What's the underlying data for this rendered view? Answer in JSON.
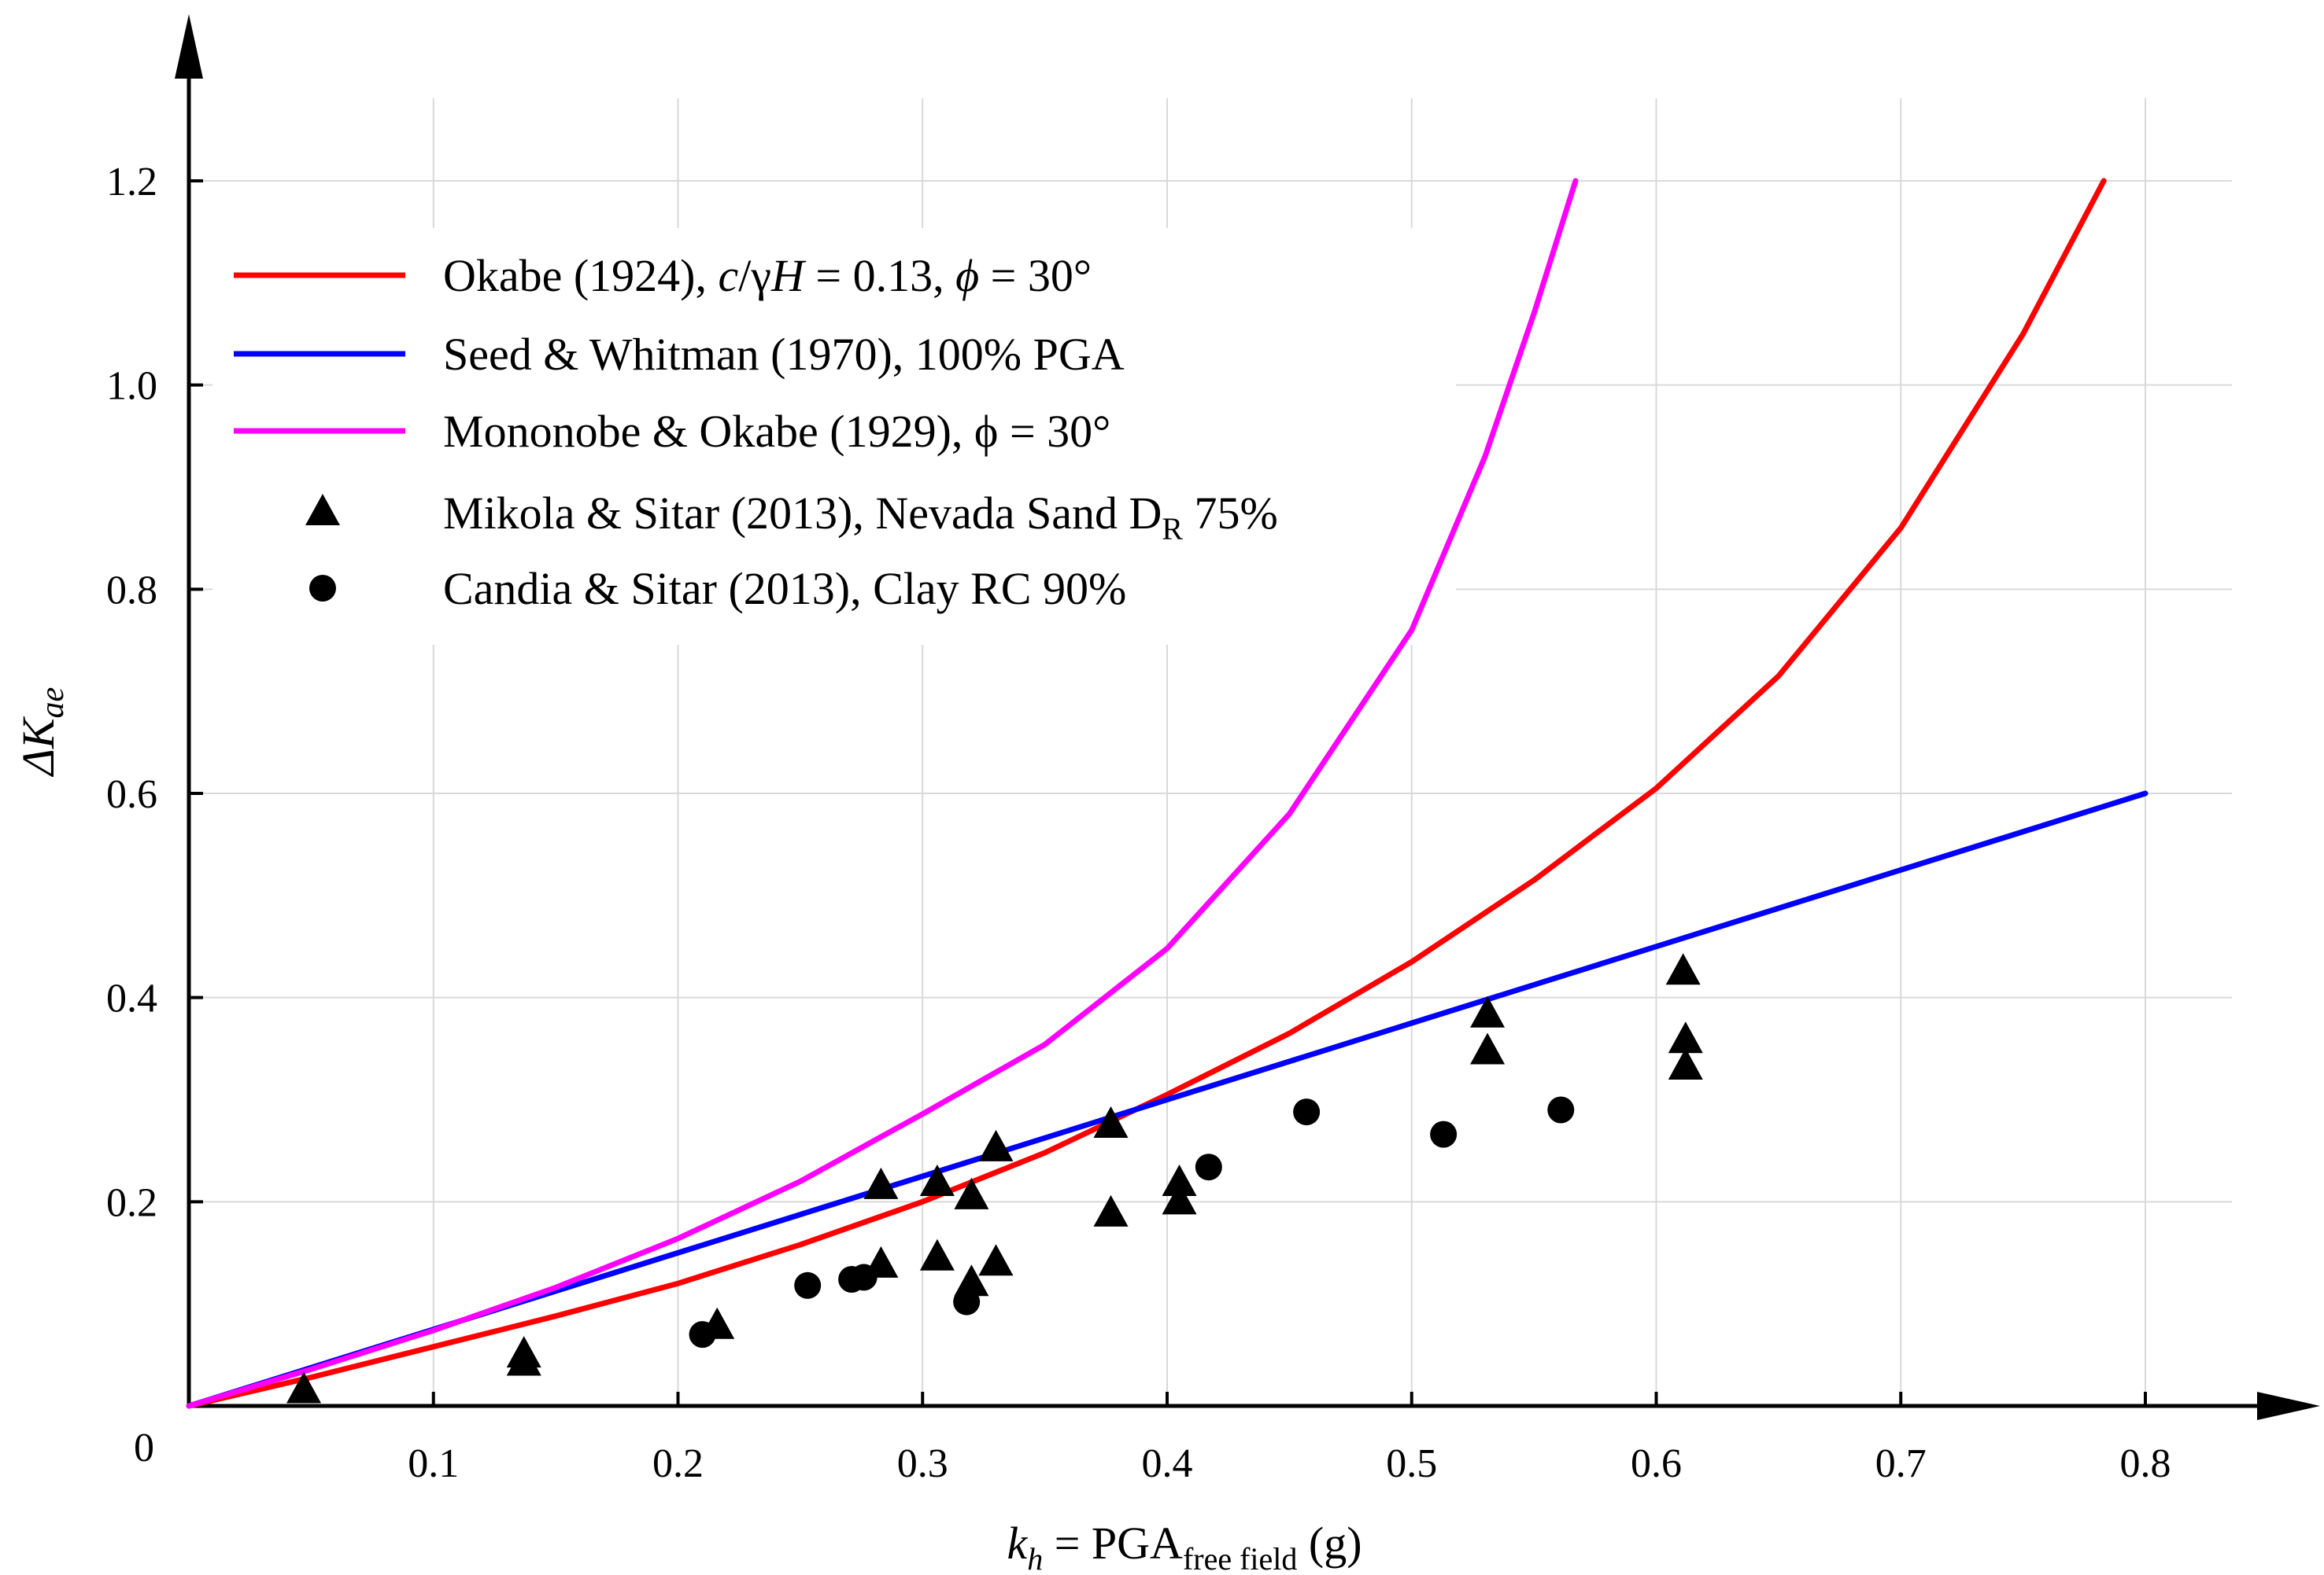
{
  "chart_data": {
    "type": "line",
    "title": "",
    "xlabel": {
      "main": "k",
      "sub": "h",
      "mid": " = PGA",
      "sub2": "free field",
      "end": "  (g)"
    },
    "ylabel": {
      "prefix": "Δ",
      "main": "K",
      "sub": "ae"
    },
    "xlim": [
      0,
      0.84
    ],
    "ylim": [
      0,
      1.3
    ],
    "xticks": [
      0.1,
      0.2,
      0.3,
      0.4,
      0.5,
      0.6,
      0.7,
      0.8
    ],
    "xtick_labels": [
      "0.1",
      "0.2",
      "0.3",
      "0.4",
      "0.5",
      "0.6",
      "0.7",
      "0.8"
    ],
    "yticks": [
      0.2,
      0.4,
      0.6,
      0.8,
      1.0,
      1.2
    ],
    "ytick_labels": [
      "0.2",
      "0.4",
      "0.6",
      "0.8",
      "1.0",
      "1.2"
    ],
    "origin_label": "0",
    "grid": true,
    "legend_position": "top-left",
    "series": [
      {
        "name": "Okabe (1924), c/γH = 0.13, ϕ = 30°",
        "kind": "line",
        "color": "#ff0000",
        "x": [
          0,
          0.05,
          0.1,
          0.15,
          0.2,
          0.25,
          0.3,
          0.35,
          0.4,
          0.45,
          0.5,
          0.55,
          0.6,
          0.65,
          0.7,
          0.75,
          0.783
        ],
        "y": [
          0,
          0.028,
          0.058,
          0.088,
          0.12,
          0.158,
          0.2,
          0.248,
          0.305,
          0.365,
          0.435,
          0.515,
          0.605,
          0.715,
          0.86,
          1.05,
          1.2
        ]
      },
      {
        "name": "Seed & Whitman (1970), 100% PGA",
        "kind": "line",
        "color": "#0000ff",
        "x": [
          0,
          0.8
        ],
        "y": [
          0,
          0.6
        ]
      },
      {
        "name": "Mononobe & Okabe (1929), ϕ = 30°",
        "kind": "line",
        "color": "#ff00ff",
        "x": [
          0,
          0.05,
          0.1,
          0.15,
          0.2,
          0.25,
          0.3,
          0.35,
          0.4,
          0.45,
          0.5,
          0.53,
          0.55,
          0.567
        ],
        "y": [
          0,
          0.036,
          0.074,
          0.116,
          0.164,
          0.22,
          0.286,
          0.354,
          0.448,
          0.58,
          0.76,
          0.93,
          1.07,
          1.2
        ]
      },
      {
        "name": "Mikola & Sitar (2013), Nevada Sand D",
        "name_sub": "R",
        "name_end": " 75%",
        "kind": "scatter",
        "marker": "triangle",
        "color": "#000000",
        "x": [
          0.047,
          0.137,
          0.137,
          0.216,
          0.283,
          0.283,
          0.306,
          0.306,
          0.32,
          0.32,
          0.33,
          0.33,
          0.377,
          0.377,
          0.405,
          0.405,
          0.531,
          0.531,
          0.611,
          0.612,
          0.612
        ],
        "y": [
          0.015,
          0.05,
          0.042,
          0.078,
          0.215,
          0.138,
          0.218,
          0.145,
          0.205,
          0.12,
          0.252,
          0.14,
          0.275,
          0.188,
          0.218,
          0.2,
          0.383,
          0.347,
          0.425,
          0.358,
          0.332
        ]
      },
      {
        "name": "Candia & Sitar (2013), Clay RC 90%",
        "kind": "scatter",
        "marker": "circle",
        "color": "#000000",
        "x": [
          0.21,
          0.253,
          0.271,
          0.276,
          0.318,
          0.417,
          0.457,
          0.513,
          0.561
        ],
        "y": [
          0.07,
          0.118,
          0.124,
          0.126,
          0.102,
          0.234,
          0.288,
          0.266,
          0.29
        ]
      }
    ]
  },
  "legend": {
    "items": [
      {
        "text_html_parts": [
          "Okabe (1924), ",
          "c",
          "/γ",
          "H",
          " = 0.13, ",
          "ϕ",
          " = 30°"
        ]
      }
    ]
  }
}
